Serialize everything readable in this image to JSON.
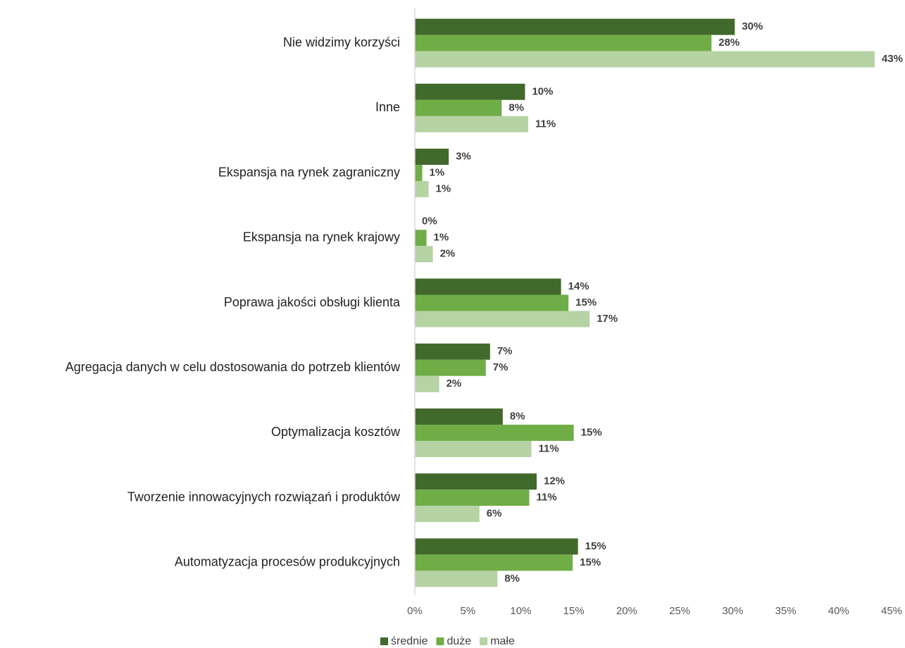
{
  "chart_data": {
    "type": "hbar",
    "categories": [
      "Nie widzimy korzyści",
      "Inne",
      "Ekspansja na rynek zagraniczny",
      "Ekspansja na rynek krajowy",
      "Poprawa jakości obsługi klienta",
      "Agregacja danych w celu dostosowania do potrzeb klientów",
      "Optymalizacja kosztów",
      "Tworzenie innowacyjnych rozwiązań i produktów",
      "Automatyzacja procesów produkcyjnych"
    ],
    "series": [
      {
        "name": "średnie",
        "color": "#41692b",
        "values": [
          30.2,
          10.4,
          3.2,
          0.0,
          13.8,
          7.1,
          8.3,
          11.5,
          15.4
        ],
        "value_labels": [
          "30%",
          "10%",
          "3%",
          "0%",
          "14%",
          "7%",
          "8%",
          "12%",
          "15%"
        ]
      },
      {
        "name": "duże",
        "color": "#70ad47",
        "values": [
          28.0,
          8.2,
          0.7,
          1.1,
          14.5,
          6.7,
          15.0,
          10.8,
          14.9
        ],
        "value_labels": [
          "28%",
          "8%",
          "1%",
          "1%",
          "15%",
          "7%",
          "15%",
          "11%",
          "15%"
        ]
      },
      {
        "name": "małe",
        "color": "#b6d3a4",
        "values": [
          43.4,
          10.7,
          1.3,
          1.7,
          16.5,
          2.3,
          11.0,
          6.1,
          7.8
        ],
        "value_labels": [
          "43%",
          "11%",
          "1%",
          "2%",
          "17%",
          "2%",
          "11%",
          "6%",
          "8%"
        ]
      }
    ],
    "xlim": [
      0,
      45
    ],
    "xticks": [
      {
        "value": 0,
        "label": "0%"
      },
      {
        "value": 5,
        "label": "5%"
      },
      {
        "value": 10,
        "label": "10%"
      },
      {
        "value": 15,
        "label": "15%"
      },
      {
        "value": 20,
        "label": "20%"
      },
      {
        "value": 25,
        "label": "25%"
      },
      {
        "value": 30,
        "label": "30%"
      },
      {
        "value": 35,
        "label": "35%"
      },
      {
        "value": 40,
        "label": "40%"
      },
      {
        "value": 45,
        "label": "45%"
      }
    ],
    "legend": "bottom"
  }
}
